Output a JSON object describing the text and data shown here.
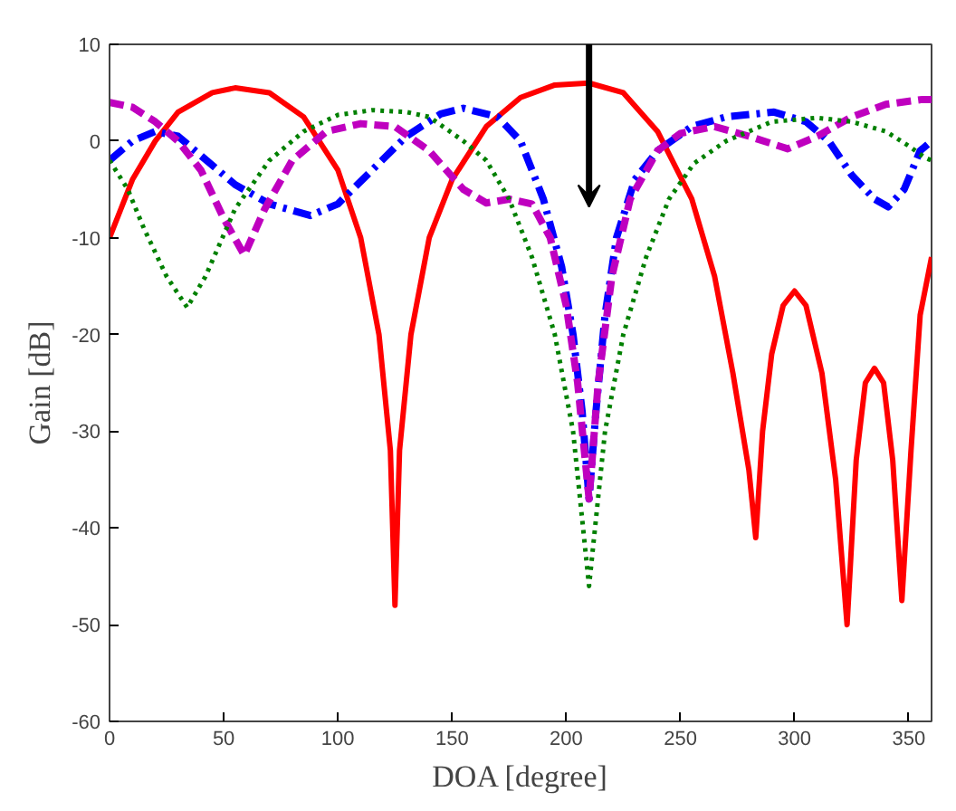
{
  "chart_data": {
    "type": "line",
    "xlabel": "DOA [degree]",
    "ylabel": "Gain [dB]",
    "xlim": [
      0,
      360
    ],
    "ylim": [
      -60,
      10
    ],
    "xticks": [
      0,
      50,
      100,
      150,
      200,
      250,
      300,
      350
    ],
    "yticks": [
      -60,
      -50,
      -40,
      -30,
      -20,
      -10,
      0,
      10
    ],
    "grid": false,
    "series": [
      {
        "color": "#ff0000",
        "line_style": "solid",
        "x": [
          0,
          10,
          20,
          30,
          45,
          55,
          70,
          85,
          100,
          110,
          118,
          123,
          125,
          127,
          132,
          140,
          150,
          165,
          180,
          195,
          210,
          225,
          240,
          255,
          265,
          273,
          280,
          283,
          286,
          290,
          295,
          300,
          305,
          312,
          318,
          323,
          327,
          331,
          335,
          339,
          343,
          347,
          351,
          355,
          360
        ],
        "values": [
          -10,
          -4,
          0,
          3,
          5,
          5.5,
          5,
          2.5,
          -3,
          -10,
          -20,
          -32,
          -48,
          -32,
          -20,
          -10,
          -4,
          1.5,
          4.5,
          5.8,
          6,
          5,
          1,
          -6,
          -14,
          -24,
          -34,
          -41,
          -30,
          -22,
          -17,
          -15.5,
          -17,
          -24,
          -35,
          -50,
          -33,
          -25,
          -23.5,
          -25,
          -33,
          -47.5,
          -32,
          -18,
          -12
        ]
      },
      {
        "color": "#0000ff",
        "line_style": "dashdot",
        "x": [
          0,
          10,
          20,
          30,
          40,
          55,
          70,
          88,
          100,
          115,
          130,
          145,
          155,
          170,
          180,
          190,
          198,
          203,
          207,
          210,
          213,
          217,
          222,
          230,
          240,
          255,
          270,
          291,
          305,
          315,
          325,
          335,
          341,
          348,
          355,
          360
        ],
        "values": [
          -2,
          0,
          1,
          0.5,
          -1.5,
          -4.5,
          -6.5,
          -7.7,
          -6.5,
          -3,
          0.5,
          2.8,
          3.4,
          2.5,
          0,
          -6,
          -13,
          -20,
          -28,
          -37,
          -28,
          -18,
          -10,
          -4,
          -1,
          1.5,
          2.5,
          3,
          2,
          0,
          -3.5,
          -6,
          -6.8,
          -5,
          -1,
          0
        ]
      },
      {
        "color": "#bf00bf",
        "line_style": "dashed",
        "x": [
          0,
          10,
          20,
          30,
          40,
          50,
          59,
          68,
          80,
          95,
          110,
          125,
          140,
          155,
          165,
          175,
          185,
          193,
          200,
          205,
          210,
          214,
          220,
          228,
          240,
          250,
          265,
          280,
          297,
          310,
          325,
          340,
          356,
          360
        ],
        "values": [
          4,
          3.5,
          2,
          0,
          -3,
          -8,
          -11.8,
          -7,
          -2,
          1,
          1.8,
          1.5,
          -1,
          -5,
          -6.4,
          -6,
          -6.5,
          -10,
          -17,
          -25,
          -37,
          -25,
          -14,
          -6,
          -1,
          0.8,
          1.5,
          0.5,
          -0.8,
          0.5,
          2.5,
          3.8,
          4.3,
          4.3
        ]
      },
      {
        "color": "#008000",
        "line_style": "dotted",
        "x": [
          0,
          8,
          15,
          25,
          34,
          42,
          55,
          70,
          85,
          100,
          115,
          130,
          140,
          155,
          165,
          175,
          185,
          195,
          203,
          210,
          217,
          225,
          235,
          245,
          256,
          270,
          290,
          310,
          325,
          340,
          350,
          357,
          360
        ],
        "values": [
          -2,
          -5,
          -9,
          -14,
          -17.2,
          -14,
          -7,
          -2,
          1,
          2.7,
          3.2,
          3,
          2.5,
          0,
          -2,
          -6,
          -12,
          -20,
          -30,
          -46,
          -30,
          -20,
          -12,
          -6,
          -2.3,
          0,
          2,
          2.4,
          2,
          1,
          -0.5,
          -1.7,
          -2
        ]
      }
    ]
  }
}
